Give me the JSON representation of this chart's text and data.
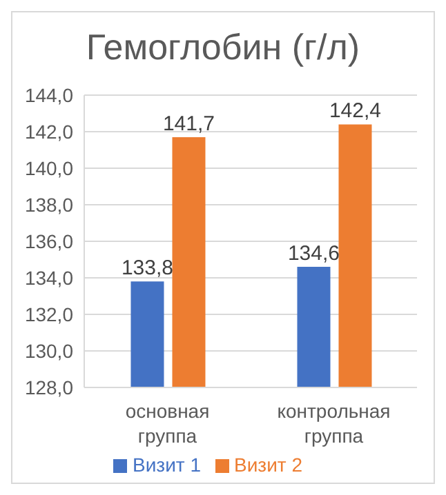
{
  "chart_data": {
    "type": "bar",
    "title": "Гемоглобин (г/л)",
    "categories": [
      "основная группа",
      "контрольная группа"
    ],
    "series": [
      {
        "name": "Визит 1",
        "color": "#4472c4",
        "values": [
          133.8,
          134.6
        ],
        "value_labels": [
          "133,8",
          "134,6"
        ]
      },
      {
        "name": "Визит 2",
        "color": "#ed7d31",
        "values": [
          141.7,
          142.4
        ],
        "value_labels": [
          "141,7",
          "142,4"
        ]
      }
    ],
    "ylim": [
      128,
      144
    ],
    "yticks": [
      {
        "value": 128,
        "label": "128,0"
      },
      {
        "value": 130,
        "label": "130,0"
      },
      {
        "value": 132,
        "label": "132,0"
      },
      {
        "value": 134,
        "label": "134,0"
      },
      {
        "value": 136,
        "label": "136,0"
      },
      {
        "value": 138,
        "label": "138,0"
      },
      {
        "value": 140,
        "label": "140,0"
      },
      {
        "value": 142,
        "label": "142,0"
      },
      {
        "value": 144,
        "label": "144,0"
      }
    ],
    "grid": "y",
    "legend": "bottom"
  }
}
